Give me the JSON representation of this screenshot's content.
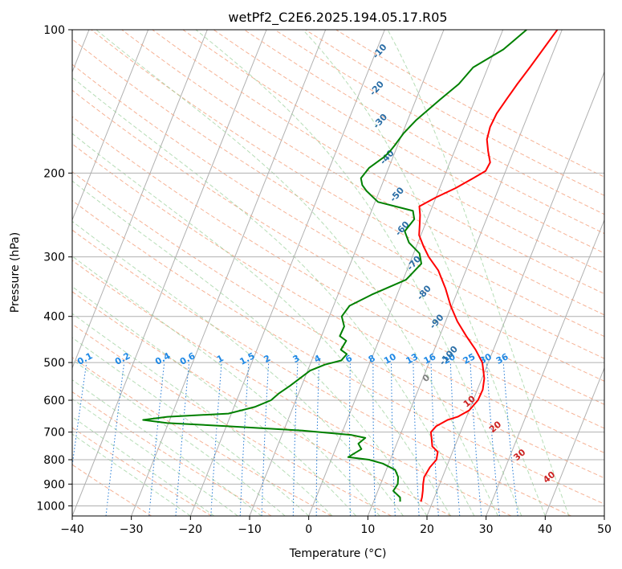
{
  "chart_data": {
    "type": "line",
    "title": "wetPf2_C2E6.2025.194.05.17.R05",
    "xlabel": "Temperature (°C)",
    "ylabel": "Pressure (hPa)",
    "xlim": [
      -40,
      50
    ],
    "ylim": [
      1050,
      100
    ],
    "y_scale": "log",
    "x_ticks": [
      "−40",
      "−30",
      "−20",
      "−10",
      "0",
      "10",
      "20",
      "30",
      "40",
      "50"
    ],
    "x_tick_values": [
      -40,
      -30,
      -20,
      -10,
      0,
      10,
      20,
      30,
      40,
      50
    ],
    "y_ticks": [
      "100",
      "200",
      "300",
      "400",
      "500",
      "600",
      "700",
      "800",
      "900",
      "1000"
    ],
    "y_tick_values": [
      100,
      200,
      300,
      400,
      500,
      600,
      700,
      800,
      900,
      1000
    ],
    "grid": true,
    "series": [
      {
        "color": "#ff0000",
        "x": [
          18.0,
          17.9,
          17.6,
          17.2,
          16.9,
          17.2,
          17.8,
          17.5,
          16.2,
          15.5,
          15.0,
          15.5,
          17.0,
          18.5,
          20.0,
          20.8,
          20.9,
          20.4,
          19.0,
          17.0,
          14.5,
          12.0,
          9.8,
          7.8,
          5.3,
          2.8,
          1.2,
          -0.3,
          -1.0,
          -1.5,
          -2.2,
          0.0,
          2.7,
          5.0,
          6.6,
          6.8,
          5.7,
          4.7,
          4.4,
          4.6,
          5.3,
          6.1,
          7.1,
          9.2
        ],
        "y": [
          980,
          960,
          930,
          900,
          870,
          830,
          800,
          770,
          750,
          720,
          700,
          680,
          660,
          650,
          630,
          600,
          570,
          540,
          500,
          470,
          440,
          410,
          380,
          350,
          320,
          300,
          285,
          270,
          255,
          245,
          235,
          225,
          215,
          205,
          198,
          190,
          180,
          170,
          160,
          150,
          140,
          130,
          120,
          100
        ]
      },
      {
        "color": "#008000",
        "x": [
          14.5,
          14.2,
          12.6,
          12.9,
          12.5,
          11.5,
          9.0,
          6.4,
          2.7,
          4.4,
          3.5,
          4.3,
          1.8,
          -6.8,
          -20.0,
          -30.2,
          -34.5,
          -30.6,
          -20.5,
          -16.5,
          -14.2,
          -13.3,
          -12.0,
          -10.2,
          -9.6,
          -7.5,
          -5.0,
          -4.5,
          -5.8,
          -5.5,
          -6.9,
          -6.8,
          -7.9,
          -7.3,
          -4.3,
          0.5,
          2.0,
          1.0,
          -1.5,
          -3.0,
          -2.2,
          -3.0,
          -9.5,
          -12.2,
          -13.3,
          -14.0,
          -13.3,
          -11.5,
          -10.9,
          -10.5,
          -9.8,
          -8.6,
          -5.9,
          -3.8,
          -2.5,
          1.4,
          4.0
        ],
        "y": [
          980,
          960,
          930,
          900,
          870,
          840,
          815,
          800,
          790,
          760,
          740,
          720,
          710,
          695,
          680,
          670,
          660,
          650,
          640,
          620,
          600,
          580,
          560,
          530,
          520,
          505,
          495,
          480,
          470,
          450,
          440,
          420,
          400,
          380,
          360,
          335,
          310,
          295,
          280,
          265,
          250,
          240,
          230,
          218,
          212,
          205,
          195,
          185,
          180,
          175,
          165,
          155,
          140,
          130,
          120,
          110,
          100
        ]
      }
    ],
    "dry_adiabat_labels": [
      "0",
      "10",
      "20",
      "30",
      "40"
    ],
    "moist_adiabat_labels": [
      "10",
      "20",
      "30",
      "40",
      "50",
      "60",
      "70",
      "80",
      "90",
      "100"
    ],
    "mixing_ratio_labels": [
      "0.1",
      "0.2",
      "0.4",
      "0.6",
      "1",
      "1.5",
      "2",
      "3",
      "4",
      "6",
      "8",
      "10",
      "13",
      "16",
      "20",
      "25",
      "30",
      "36"
    ]
  }
}
